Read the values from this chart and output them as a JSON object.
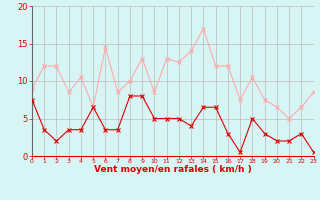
{
  "hours": [
    0,
    1,
    2,
    3,
    4,
    5,
    6,
    7,
    8,
    9,
    10,
    11,
    12,
    13,
    14,
    15,
    16,
    17,
    18,
    19,
    20,
    21,
    22,
    23
  ],
  "wind_avg": [
    7.5,
    3.5,
    2,
    3.5,
    3.5,
    6.5,
    3.5,
    3.5,
    8,
    8,
    5,
    5,
    5,
    4,
    6.5,
    6.5,
    3,
    0.5,
    5,
    3,
    2,
    2,
    3,
    0.5
  ],
  "wind_gust": [
    9,
    12,
    12,
    8.5,
    10.5,
    6.5,
    14.5,
    8.5,
    10,
    13,
    8.5,
    13,
    12.5,
    14,
    17,
    12,
    12,
    7.5,
    10.5,
    7.5,
    6.5,
    5,
    6.5,
    8.5
  ],
  "avg_color": "#dd0000",
  "gust_color": "#ffaaaa",
  "bg_color": "#d8f5f5",
  "grid_color": "#bbbbbb",
  "xlabel": "Vent moyen/en rafales ( km/h )",
  "xlabel_color": "#dd0000",
  "tick_color": "#dd0000",
  "ylim": [
    0,
    20
  ],
  "yticks": [
    0,
    5,
    10,
    15,
    20
  ]
}
